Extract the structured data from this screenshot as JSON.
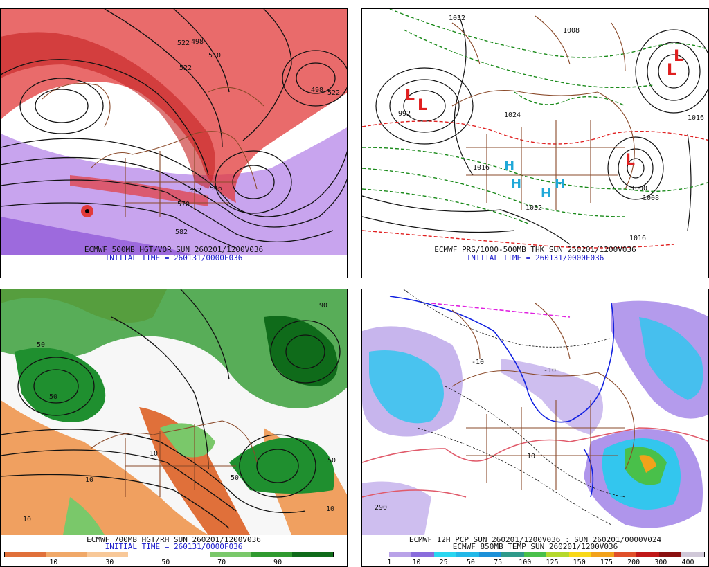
{
  "panels": [
    {
      "id": "tl",
      "caption1": "ECMWF 500MB HGT/VOR SUN 260201/1200V036",
      "caption2": "INITIAL TIME = 260131/0000F036",
      "contour_labels": [
        "522",
        "498",
        "510",
        "522",
        "552",
        "546",
        "570",
        "582",
        "498",
        "522"
      ]
    },
    {
      "id": "tr",
      "caption1": "ECMWF PRS/1000-500MB THK SUN 260201/1200V036",
      "caption2": "INITIAL TIME = 260131/0000F036",
      "contour_labels": [
        "992",
        "1032",
        "1008",
        "1024",
        "1016",
        "1032",
        "1000",
        "1008",
        "1016",
        "1016"
      ]
    },
    {
      "id": "bl",
      "caption1": "ECMWF 700MB HGT/RH SUN 260201/1200V036",
      "caption2": "INITIAL TIME = 260131/0000F036",
      "contour_labels": [
        "50",
        "50",
        "10",
        "10",
        "50",
        "90",
        "10",
        "50",
        "10"
      ],
      "legend": {
        "colors": [
          "#e0703a",
          "#f0a868",
          "#f8c898",
          "#ffffff",
          "#ffffff",
          "#7ac86a",
          "#2f9a2f",
          "#0f6b1a"
        ],
        "ticks": [
          "10",
          "30",
          "50",
          "70",
          "90"
        ]
      }
    },
    {
      "id": "br",
      "caption1": "ECMWF 12H PCP SUN 260201/1200V036 : SUN 260201/0000V024",
      "caption2": "ECMWF 850MB TEMP SUN 260201/1200V036",
      "contour_labels": [
        "-10",
        "-10",
        "290",
        "10"
      ],
      "legend": {
        "colors": [
          "#ffffff",
          "#b9a2e8",
          "#8a6ddc",
          "#2ad6f0",
          "#22b8e8",
          "#1c90d8",
          "#2f9a8a",
          "#49c04a",
          "#b4d82c",
          "#f8d818",
          "#f2a21a",
          "#e0502a",
          "#c01818",
          "#8a1010",
          "#d0c8d8"
        ],
        "ticks": [
          "1",
          "10",
          "25",
          "50",
          "75",
          "100",
          "125",
          "150",
          "175",
          "200",
          "300",
          "400"
        ]
      }
    }
  ],
  "colors": {
    "vorticity_red": "#e23a3a",
    "vorticity_purple": "#9a5ae0",
    "rh_green": "#1f8f2f",
    "rh_orange": "#f0a060",
    "thickness_red": "#e02020",
    "thickness_green": "#1a8a1a",
    "borders_brown": "#8a4a2a",
    "precip_cyan": "#33c6ee",
    "precip_purple": "#9b7ae6",
    "freezing_blue": "#1020e0",
    "warm_pink": "#e05a6a"
  },
  "symbols": {
    "lows": [
      "L",
      "L",
      "L",
      "L",
      "L"
    ],
    "highs": [
      "H",
      "H",
      "H",
      "H"
    ]
  }
}
